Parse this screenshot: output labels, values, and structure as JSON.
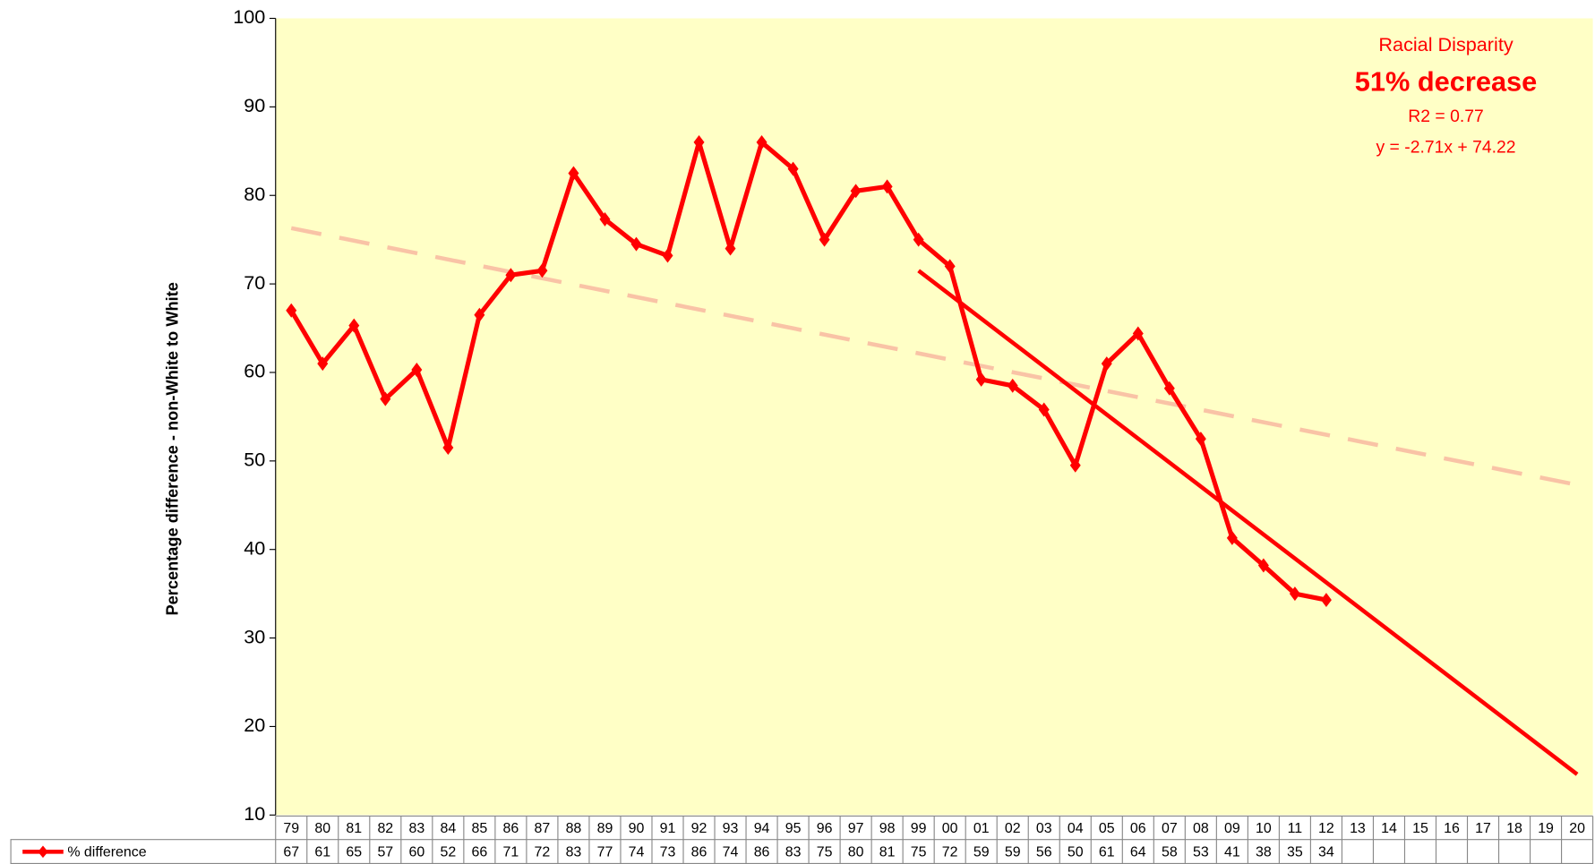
{
  "chart_data": {
    "type": "line",
    "y_label": "Percentage difference - non-White to White",
    "categories": [
      "79",
      "80",
      "81",
      "82",
      "83",
      "84",
      "85",
      "86",
      "87",
      "88",
      "89",
      "90",
      "91",
      "92",
      "93",
      "94",
      "95",
      "96",
      "97",
      "98",
      "99",
      "00",
      "01",
      "02",
      "03",
      "04",
      "05",
      "06",
      "07",
      "08",
      "09",
      "10",
      "11",
      "12",
      "13",
      "14",
      "15",
      "16",
      "17",
      "18",
      "19",
      "20"
    ],
    "series": [
      {
        "name": "% difference",
        "color": "#ff0000",
        "values": [
          67,
          61,
          65.3,
          57,
          60.3,
          51.5,
          66.5,
          71,
          71.5,
          82.5,
          77.3,
          74.5,
          73.2,
          86,
          74,
          86,
          83,
          75,
          80.5,
          81,
          75,
          72,
          59.2,
          58.5,
          55.8,
          49.5,
          61,
          64.4,
          58.2,
          52.5,
          41.3,
          38.2,
          35,
          34.3,
          null,
          null,
          null,
          null,
          null,
          null,
          null,
          null
        ],
        "value_labels": [
          "67",
          "61",
          "65",
          "57",
          "60",
          "52",
          "66",
          "71",
          "72",
          "83",
          "77",
          "74",
          "73",
          "86",
          "74",
          "86",
          "83",
          "75",
          "80",
          "81",
          "75",
          "72",
          "59",
          "59",
          "56",
          "50",
          "61",
          "64",
          "58",
          "53",
          "41",
          "38",
          "35",
          "34",
          null,
          null,
          null,
          null,
          null,
          null,
          null,
          null
        ]
      }
    ],
    "trendlines": [
      {
        "from": "79",
        "to": "20",
        "values": [
          76.3,
          47.3
        ],
        "color": "#f9c3a6",
        "dashed": true
      },
      {
        "from": "99",
        "to": "20",
        "values": [
          71.5,
          14.6
        ],
        "color": "#ff0000",
        "dashed": false
      }
    ],
    "annotations": [
      "Racial Disparity",
      "51% decrease",
      "R2 = 0.77",
      "y = -2.71x + 74.22"
    ],
    "ylim": [
      10,
      100
    ],
    "yticks": [
      10,
      20,
      30,
      40,
      50,
      60,
      70,
      80,
      90,
      100
    ],
    "background": "#ffffc6"
  }
}
